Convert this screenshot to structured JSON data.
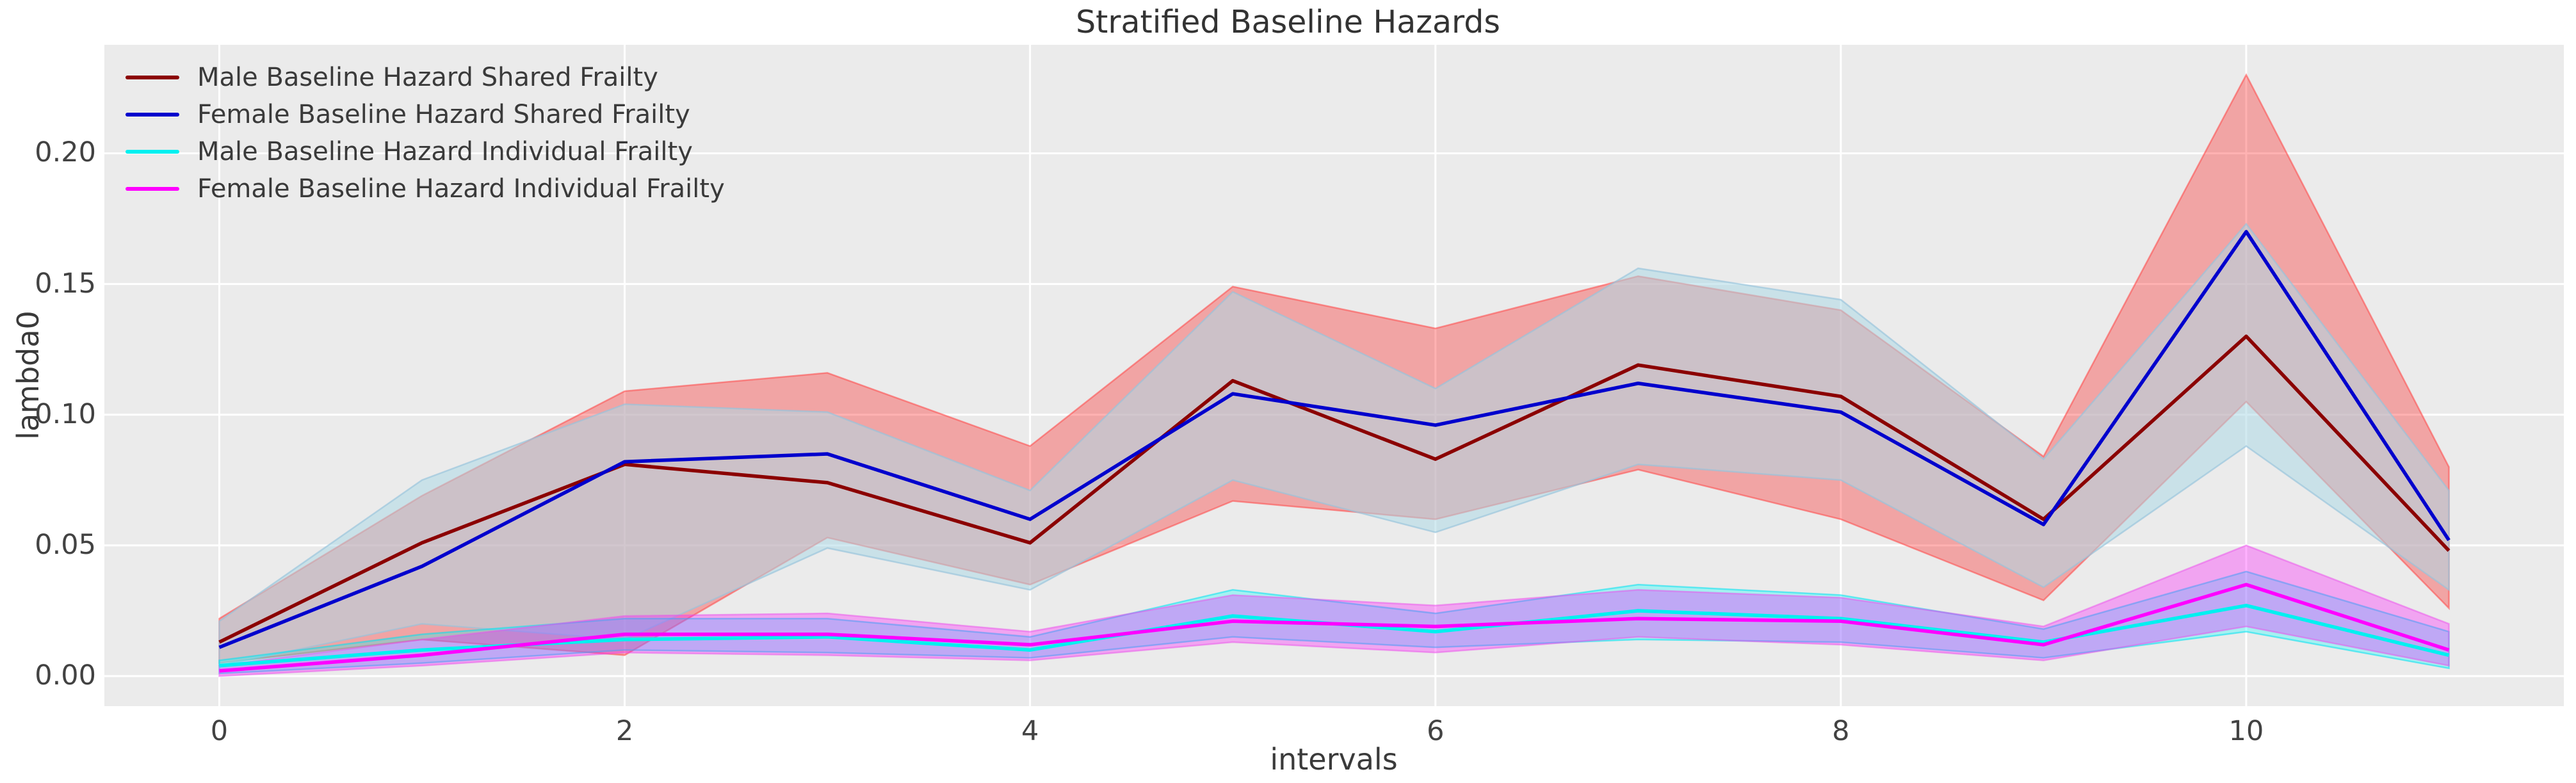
{
  "figure": {
    "title": "Stratified Baseline Hazards",
    "background_color": "#ffffff",
    "plot_background_color": "#ebebeb",
    "grid_color": "#ffffff",
    "text_color": "#3a3a3a"
  },
  "chart_data": {
    "type": "line",
    "title": "Stratified Baseline Hazards",
    "xlabel": "intervals",
    "ylabel": "lambda0",
    "grid": true,
    "legend_position": "upper left",
    "x": [
      0,
      1,
      2,
      3,
      4,
      5,
      6,
      7,
      8,
      9,
      10,
      11
    ],
    "xlim": [
      -0.567,
      11.567
    ],
    "ylim": [
      -0.0115,
      0.2415
    ],
    "xticks": [
      0,
      2,
      4,
      6,
      8,
      10
    ],
    "xtick_labels": [
      "0",
      "2",
      "4",
      "6",
      "8",
      "10"
    ],
    "ytick_values": [
      0.0,
      0.05,
      0.1,
      0.15,
      0.2
    ],
    "ytick_labels": [
      "0.00",
      "0.05",
      "0.10",
      "0.15",
      "0.20"
    ],
    "series": [
      {
        "name": "Male Baseline Hazard Shared Frailty",
        "color": "#8b0000",
        "band_fill": "rgba(255,0,0,0.30)",
        "band_edge": "rgba(255,70,70,0.55)",
        "values": [
          0.013,
          0.051,
          0.081,
          0.074,
          0.051,
          0.113,
          0.083,
          0.119,
          0.107,
          0.06,
          0.13,
          0.048
        ],
        "band_lo": [
          0.005,
          0.014,
          0.008,
          0.053,
          0.035,
          0.067,
          0.06,
          0.079,
          0.06,
          0.029,
          0.105,
          0.026
        ],
        "band_hi": [
          0.022,
          0.069,
          0.109,
          0.116,
          0.088,
          0.149,
          0.133,
          0.153,
          0.14,
          0.084,
          0.23,
          0.08
        ]
      },
      {
        "name": "Female Baseline Hazard Shared Frailty",
        "color": "#0000cd",
        "band_fill": "rgba(173,216,230,0.55)",
        "band_edge": "rgba(150,195,220,0.65)",
        "values": [
          0.011,
          0.042,
          0.082,
          0.085,
          0.06,
          0.108,
          0.096,
          0.112,
          0.101,
          0.058,
          0.17,
          0.052
        ],
        "band_lo": [
          0.004,
          0.02,
          0.014,
          0.049,
          0.033,
          0.075,
          0.055,
          0.081,
          0.075,
          0.034,
          0.088,
          0.033
        ],
        "band_hi": [
          0.021,
          0.075,
          0.104,
          0.101,
          0.071,
          0.147,
          0.11,
          0.156,
          0.144,
          0.083,
          0.173,
          0.071
        ]
      },
      {
        "name": "Male Baseline Hazard Individual Frailty",
        "color": "#00f0f0",
        "band_fill": "rgba(0,255,255,0.30)",
        "band_edge": "rgba(0,225,240,0.55)",
        "values": [
          0.004,
          0.01,
          0.014,
          0.015,
          0.01,
          0.023,
          0.017,
          0.025,
          0.022,
          0.013,
          0.027,
          0.008
        ],
        "band_lo": [
          0.001,
          0.005,
          0.01,
          0.009,
          0.007,
          0.015,
          0.011,
          0.014,
          0.013,
          0.007,
          0.017,
          0.003
        ],
        "band_hi": [
          0.006,
          0.016,
          0.022,
          0.022,
          0.015,
          0.033,
          0.024,
          0.035,
          0.031,
          0.018,
          0.04,
          0.017
        ]
      },
      {
        "name": "Female Baseline Hazard Individual Frailty",
        "color": "#ff00ff",
        "band_fill": "rgba(255,0,255,0.30)",
        "band_edge": "rgba(235,80,235,0.50)",
        "values": [
          0.002,
          0.008,
          0.016,
          0.016,
          0.012,
          0.021,
          0.019,
          0.022,
          0.021,
          0.012,
          0.035,
          0.01
        ],
        "band_lo": [
          0.0,
          0.004,
          0.009,
          0.008,
          0.006,
          0.013,
          0.009,
          0.015,
          0.012,
          0.006,
          0.019,
          0.004
        ],
        "band_hi": [
          0.004,
          0.014,
          0.023,
          0.024,
          0.017,
          0.031,
          0.027,
          0.033,
          0.03,
          0.019,
          0.05,
          0.02
        ]
      }
    ]
  }
}
